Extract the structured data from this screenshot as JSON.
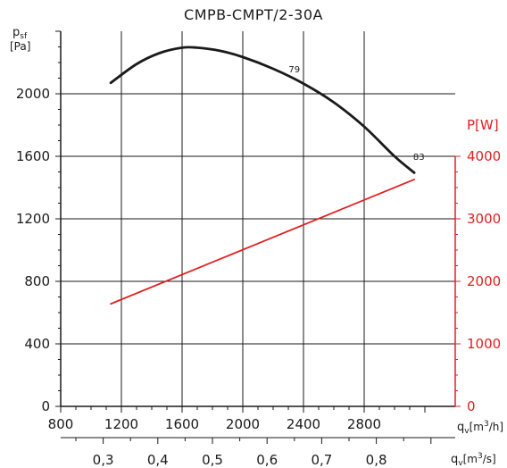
{
  "chart_data": {
    "type": "line",
    "title": "CMPB-CMPT/2-30A",
    "grid": true,
    "legend": "none",
    "x_axis": {
      "label_main": "q",
      "label_sub": "v",
      "label_unit": "[m",
      "label_sup": "3",
      "label_end": "/h]",
      "range": [
        800,
        3400
      ],
      "ticks": [
        800,
        1200,
        1600,
        2000,
        2400,
        2800
      ]
    },
    "x2_axis": {
      "label_main": "q",
      "label_sub": "v",
      "label_unit": "[m",
      "label_sup": "3",
      "label_end": "/s]",
      "ticks": [
        0.3,
        0.4,
        0.5,
        0.6,
        0.7,
        0.8
      ],
      "tick_labels": [
        "0,3",
        "0,4",
        "0,5",
        "0,6",
        "0,7",
        "0,8"
      ]
    },
    "y_axis": {
      "label_main": "p",
      "label_sub": "sf",
      "label_unit": "[Pa]",
      "range": [
        0,
        2400
      ],
      "ticks": [
        0,
        400,
        800,
        1200,
        1600,
        2000
      ]
    },
    "y2_axis": {
      "label": "P[W]",
      "color": "#e02020",
      "range": [
        0,
        6000
      ],
      "ticks": [
        0,
        1000,
        2000,
        3000,
        4000
      ]
    },
    "series": [
      {
        "axis": "left",
        "color": "#1a1a1a",
        "x": [
          1130,
          1300,
          1450,
          1600,
          1700,
          1850,
          2000,
          2200,
          2400,
          2600,
          2800,
          3000,
          3130
        ],
        "y": [
          2070,
          2190,
          2260,
          2295,
          2295,
          2275,
          2235,
          2160,
          2065,
          1945,
          1790,
          1600,
          1495
        ]
      },
      {
        "axis": "right",
        "color": "#e02020",
        "x": [
          1130,
          3130
        ],
        "y": [
          1640,
          3630
        ]
      }
    ],
    "annotations": [
      {
        "text": "79",
        "x": 2340,
        "y": 2160
      },
      {
        "text": "83",
        "x": 3160,
        "y": 1600
      }
    ]
  }
}
